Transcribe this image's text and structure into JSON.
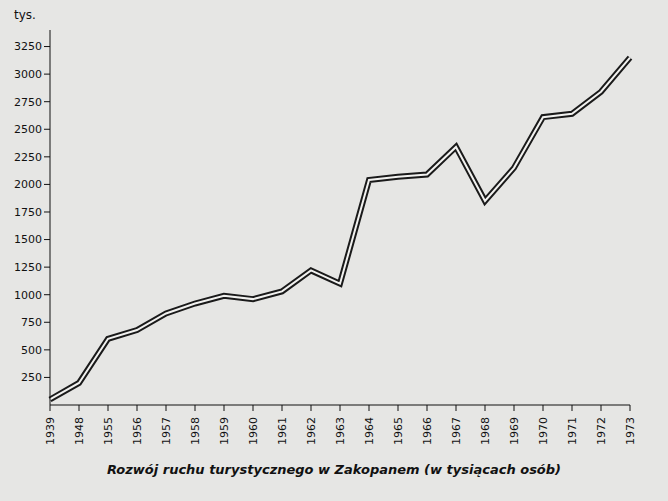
{
  "chart_data": {
    "type": "line",
    "title": "Rozwój ruchu turystycznego w Zakopanem (w tysiącach osób)",
    "y_label": "tys.",
    "categories": [
      "1939",
      "1948",
      "1955",
      "1956",
      "1957",
      "1958",
      "1959",
      "1960",
      "1961",
      "1962",
      "1963",
      "1964",
      "1965",
      "1966",
      "1967",
      "1968",
      "1969",
      "1970",
      "1971",
      "1972",
      "1973"
    ],
    "values": [
      50,
      200,
      600,
      680,
      830,
      920,
      990,
      960,
      1030,
      1220,
      1100,
      2040,
      2070,
      2090,
      2340,
      1850,
      2150,
      2610,
      2640,
      2840,
      3150
    ],
    "color": "#1a1a1a",
    "ylim": [
      0,
      3400
    ],
    "yticks": [
      250,
      500,
      750,
      1000,
      1250,
      1500,
      1750,
      2000,
      2250,
      2500,
      2750,
      3000,
      3250
    ],
    "grid": false
  }
}
